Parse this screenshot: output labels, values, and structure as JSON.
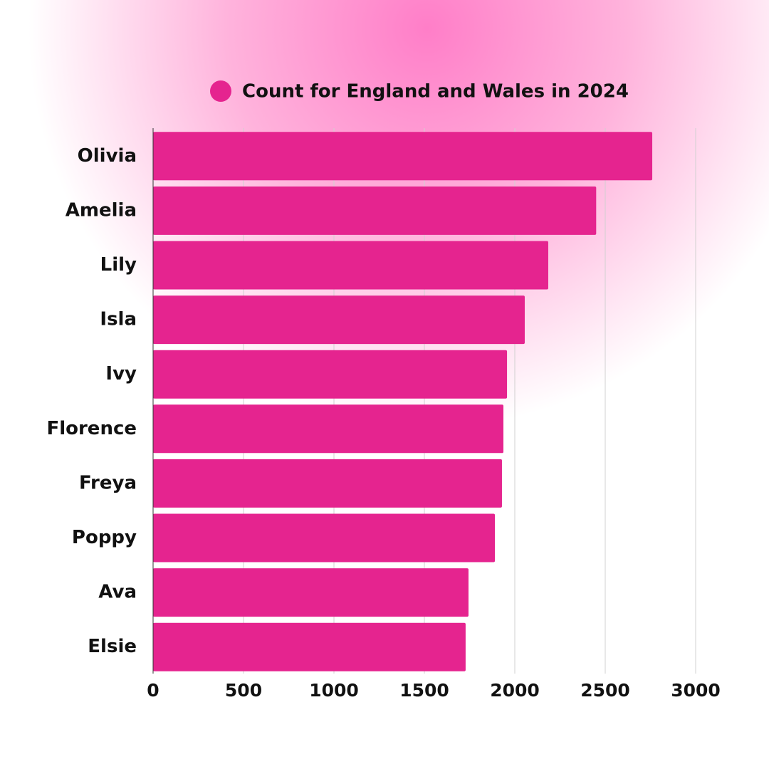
{
  "chart_data": {
    "type": "bar",
    "orientation": "horizontal",
    "categories": [
      "Olivia",
      "Amelia",
      "Lily",
      "Isla",
      "Ivy",
      "Florence",
      "Freya",
      "Poppy",
      "Ava",
      "Elsie"
    ],
    "series": [
      {
        "name": "Count for England and Wales in 2024",
        "color": "#e5248f",
        "values": [
          2760,
          2450,
          2185,
          2055,
          1957,
          1937,
          1929,
          1890,
          1744,
          1728
        ]
      }
    ],
    "xlim": [
      0,
      3000
    ],
    "xticks": [
      0,
      500,
      1000,
      1500,
      2000,
      2500,
      3000
    ],
    "grid": true
  }
}
